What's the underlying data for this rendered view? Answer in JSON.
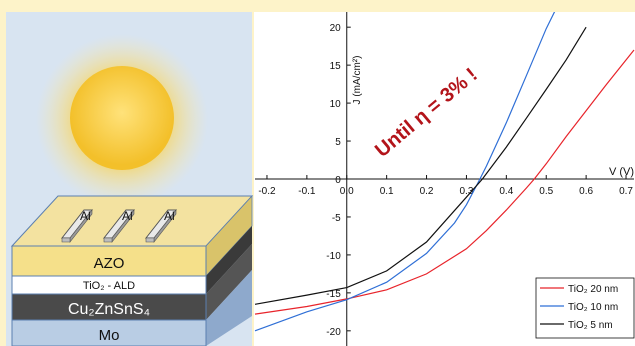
{
  "illustration": {
    "electrode_label": "Al",
    "layers": [
      {
        "label": "AZO",
        "color": "#f5e08a"
      },
      {
        "label": "TiO₂ - ALD",
        "color": "#ffffff"
      },
      {
        "label": "Cu₂ZnSnS₄",
        "color": "#4a4a4a"
      },
      {
        "label": "Mo",
        "color": "#b9cde4"
      }
    ]
  },
  "chart_data": {
    "type": "line",
    "xlabel": "V (V)",
    "ylabel": "J (mA/cm²)",
    "xlim": [
      -0.23,
      0.72
    ],
    "ylim": [
      -22,
      22
    ],
    "x_ticks": [
      "-0.2",
      "-0.1",
      "0.0",
      "0.1",
      "0.2",
      "0.3",
      "0.4",
      "0.5",
      "0.6",
      "0.7"
    ],
    "x_tick_values": [
      -0.2,
      -0.1,
      0.0,
      0.1,
      0.2,
      0.3,
      0.4,
      0.5,
      0.6,
      0.7
    ],
    "y_ticks": [
      "20",
      "15",
      "10",
      "5",
      "0",
      "-5",
      "-10",
      "-15",
      "-20"
    ],
    "y_tick_values": [
      20,
      15,
      10,
      5,
      0,
      -5,
      -10,
      -15,
      -20
    ],
    "annotation": "Until η = 3% !",
    "grid": false,
    "legend_position": "bottom-right",
    "series": [
      {
        "name": "TiO₂ 20 nm",
        "color": "#e8242b",
        "x": [
          -0.23,
          -0.1,
          0.0,
          0.1,
          0.2,
          0.3,
          0.35,
          0.4,
          0.45,
          0.47,
          0.5,
          0.55,
          0.6,
          0.65,
          0.72
        ],
        "y": [
          -17.8,
          -16.8,
          -15.8,
          -14.6,
          -12.5,
          -9.2,
          -6.8,
          -4.1,
          -1.2,
          0.0,
          2.0,
          5.6,
          9.0,
          12.4,
          17.0
        ]
      },
      {
        "name": "TiO₂ 10 nm",
        "color": "#2f6fd6",
        "x": [
          -0.23,
          -0.1,
          0.0,
          0.1,
          0.2,
          0.27,
          0.3,
          0.33,
          0.35,
          0.4,
          0.45,
          0.5,
          0.53
        ],
        "y": [
          -20.0,
          -17.5,
          -15.9,
          -13.6,
          -9.8,
          -5.8,
          -3.4,
          -0.4,
          1.7,
          7.4,
          13.6,
          19.8,
          23.0
        ]
      },
      {
        "name": "TiO₂ 5 nm",
        "color": "#111111",
        "x": [
          -0.23,
          -0.1,
          0.0,
          0.1,
          0.2,
          0.3,
          0.34,
          0.4,
          0.45,
          0.5,
          0.55,
          0.6
        ],
        "y": [
          -16.5,
          -15.3,
          -14.3,
          -12.1,
          -8.3,
          -2.4,
          0.0,
          4.2,
          8.0,
          11.8,
          15.7,
          20.0
        ]
      }
    ]
  }
}
